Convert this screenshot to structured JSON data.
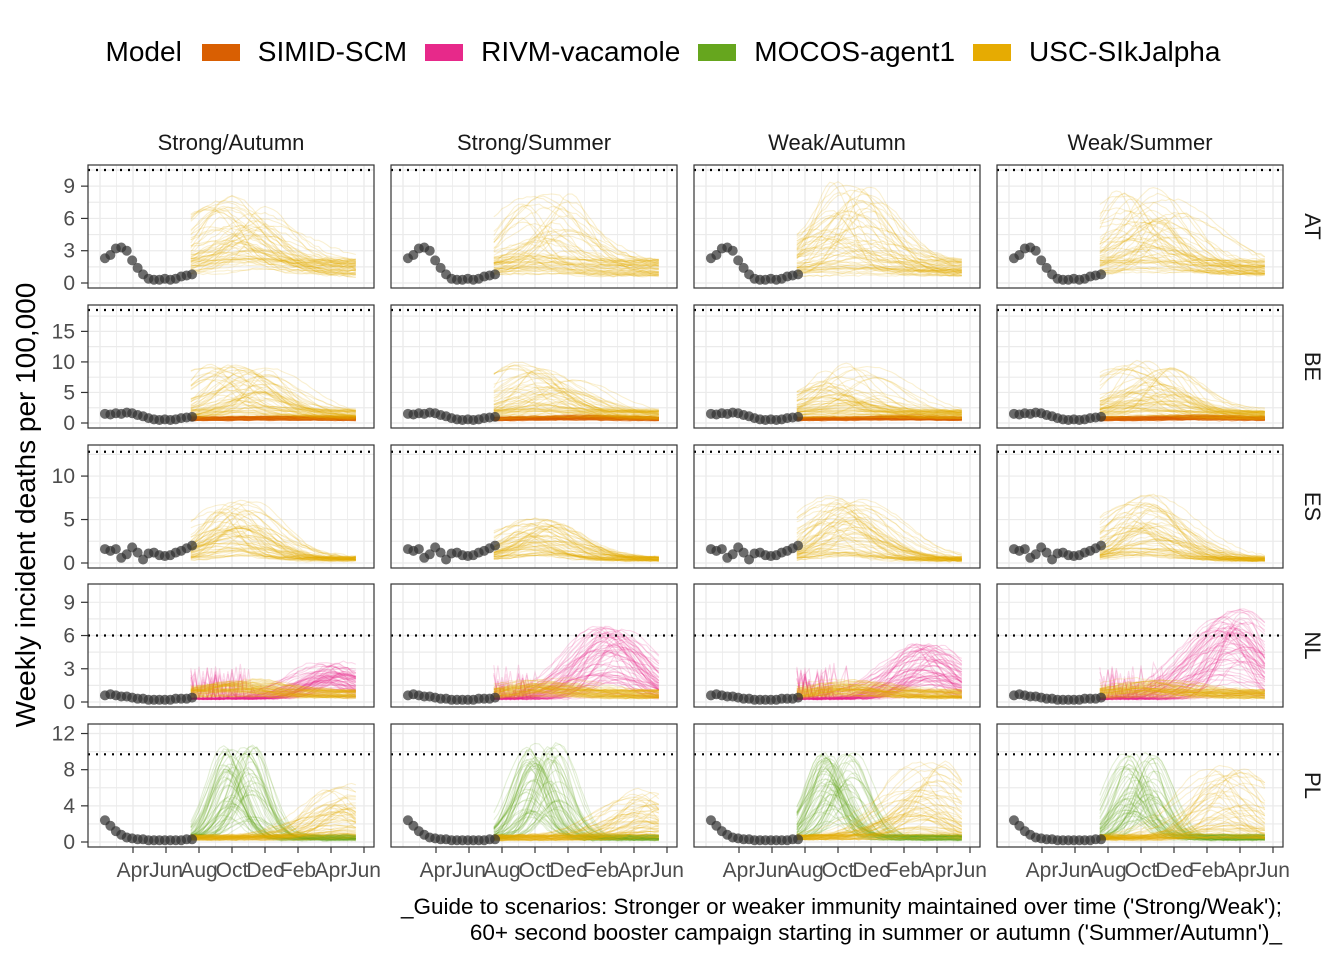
{
  "chart_data": {
    "type": "line",
    "legend_title": "Model",
    "legend_placement": "top",
    "series": [
      {
        "name": "SIMID-SCM",
        "color": "#D95F02"
      },
      {
        "name": "RIVM-vacamole",
        "color": "#E7298A"
      },
      {
        "name": "MOCOS-agent1",
        "color": "#66A61E"
      },
      {
        "name": "USC-SIkJalpha",
        "color": "#E6AB02"
      }
    ],
    "observed_color": "#333333",
    "columns": [
      "Strong/Autumn",
      "Strong/Summer",
      "Weak/Autumn",
      "Weak/Summer"
    ],
    "x_tick_labels": [
      "Apr",
      "Jun",
      "Aug",
      "Oct",
      "Dec",
      "Feb",
      "Apr",
      "Jun"
    ],
    "ylabel": "Weekly incident deaths per 100,000",
    "grid": true,
    "caption_line1": "_Guide to scenarios: Stronger or weaker immunity maintained over time ('Strong/Weak');",
    "caption_line2": "60+ second booster campaign starting in summer or autumn ('Summer/Autumn')_",
    "rows": [
      {
        "label": "AT",
        "ylim": [
          0,
          10.5
        ],
        "yticks": [
          0,
          3,
          6,
          9
        ],
        "reference": 10.5,
        "observed": [
          2.3,
          2.6,
          3.2,
          3.3,
          3.0,
          2.1,
          1.4,
          0.8,
          0.4,
          0.3,
          0.3,
          0.4,
          0.3,
          0.4,
          0.6,
          0.7,
          0.8
        ],
        "models": [
          "USC-SIkJalpha"
        ],
        "peaks": {
          "USC-SIkJalpha": [
            6.5,
            6.5,
            8.5,
            7.0
          ]
        }
      },
      {
        "label": "BE",
        "ylim": [
          0,
          18.5
        ],
        "yticks": [
          0,
          5,
          10,
          15
        ],
        "reference": 18.5,
        "observed": [
          1.5,
          1.4,
          1.6,
          1.5,
          1.7,
          1.6,
          1.3,
          1.1,
          0.8,
          0.6,
          0.5,
          0.6,
          0.5,
          0.6,
          0.8,
          0.9,
          1.0
        ],
        "models": [
          "SIMID-SCM",
          "USC-SIkJalpha"
        ],
        "peaks": {
          "USC-SIkJalpha": [
            8.0,
            8.0,
            8.0,
            9.0
          ]
        }
      },
      {
        "label": "ES",
        "ylim": [
          0,
          13
        ],
        "yticks": [
          0,
          5,
          10
        ],
        "reference": 12.8,
        "observed": [
          1.6,
          1.4,
          1.6,
          0.6,
          1.0,
          1.8,
          1.2,
          0.4,
          1.1,
          1.2,
          0.9,
          0.8,
          0.9,
          1.2,
          1.4,
          1.7,
          2.0
        ],
        "models": [
          "USC-SIkJalpha"
        ],
        "peaks": {
          "USC-SIkJalpha": [
            6.5,
            4.5,
            7.0,
            7.5
          ]
        }
      },
      {
        "label": "NL",
        "ylim": [
          0,
          10.2
        ],
        "yticks": [
          0,
          3,
          6,
          9
        ],
        "reference": 6,
        "observed": [
          0.6,
          0.7,
          0.6,
          0.5,
          0.5,
          0.4,
          0.3,
          0.3,
          0.2,
          0.2,
          0.2,
          0.2,
          0.2,
          0.3,
          0.3,
          0.3,
          0.4
        ],
        "models": [
          "RIVM-vacamole",
          "USC-SIkJalpha"
        ],
        "peaks": {
          "RIVM-vacamole": [
            3.2,
            6.5,
            4.8,
            8.0
          ]
        }
      },
      {
        "label": "PL",
        "ylim": [
          0,
          12.5
        ],
        "yticks": [
          0,
          4,
          8,
          12
        ],
        "reference": 9.7,
        "observed": [
          2.4,
          1.8,
          1.2,
          0.8,
          0.5,
          0.4,
          0.3,
          0.3,
          0.2,
          0.2,
          0.2,
          0.2,
          0.2,
          0.2,
          0.2,
          0.3,
          0.3
        ],
        "models": [
          "MOCOS-agent1",
          "USC-SIkJalpha"
        ],
        "peaks": {
          "MOCOS-agent1": [
            11.0,
            11.0,
            10.0,
            10.0
          ],
          "USC-SIkJalpha": [
            6.0,
            5.5,
            8.5,
            8.0
          ]
        }
      }
    ]
  }
}
